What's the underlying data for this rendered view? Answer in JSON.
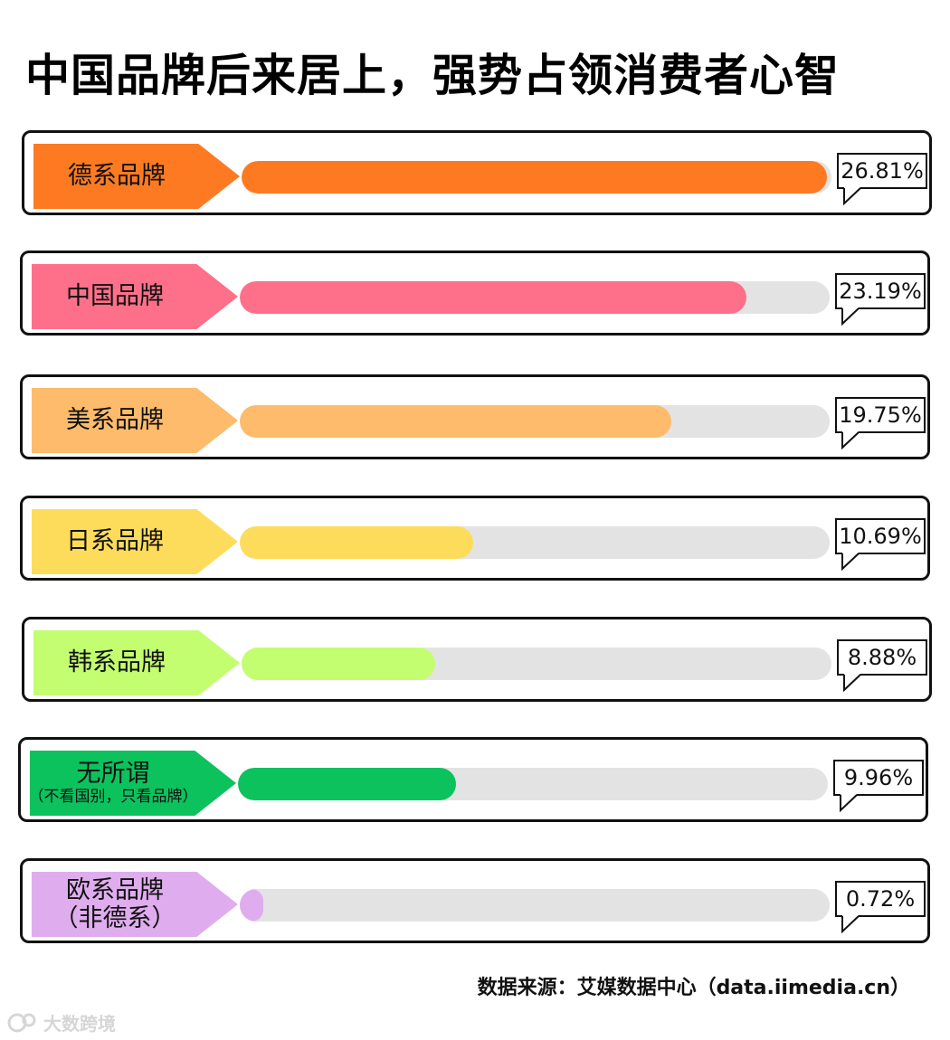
{
  "title": "中国品牌后来居上，强势占领消费者心智",
  "source": "数据来源：艾媒数据中心（data.iimedia.cn）",
  "watermark": "大数跨境",
  "chart_data": {
    "type": "bar",
    "title": "中国品牌后来居上，强势占领消费者心智",
    "xlabel": "",
    "ylabel": "",
    "ylim": [
      0,
      27
    ],
    "categories": [
      "德系品牌",
      "中国品牌",
      "美系品牌",
      "日系品牌",
      "韩系品牌",
      "无所谓（不看国别，只看品牌）",
      "欧系品牌（非德系）"
    ],
    "bars": [
      {
        "label": "德系品牌",
        "sublabel": "",
        "value": 26.81,
        "display": "26.81%",
        "color": "#fd7a22"
      },
      {
        "label": "中国品牌",
        "sublabel": "",
        "value": 23.19,
        "display": "23.19%",
        "color": "#fe7089"
      },
      {
        "label": "美系品牌",
        "sublabel": "",
        "value": 19.75,
        "display": "19.75%",
        "color": "#fdbb6b"
      },
      {
        "label": "日系品牌",
        "sublabel": "",
        "value": 10.69,
        "display": "10.69%",
        "color": "#fedc5b"
      },
      {
        "label": "韩系品牌",
        "sublabel": "",
        "value": 8.88,
        "display": "8.88%",
        "color": "#c2fe70"
      },
      {
        "label": "无所谓",
        "sublabel": "（不看国别，只看品牌）",
        "value": 9.96,
        "display": "9.96%",
        "color": "#0cc25d"
      },
      {
        "label": "欧系品牌",
        "sublabel": "（非德系）",
        "value": 0.72,
        "display": "0.72%",
        "color": "#dfadee"
      }
    ]
  }
}
